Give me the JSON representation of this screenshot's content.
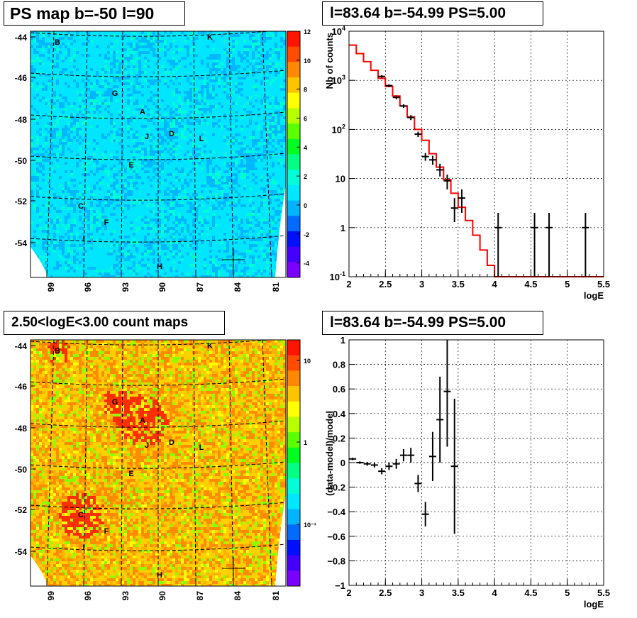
{
  "palette": [
    "#7a00ff",
    "#4400ff",
    "#0010ff",
    "#006cff",
    "#00b4ff",
    "#00e8ff",
    "#00ffd8",
    "#00ff84",
    "#00ff20",
    "#5cff00",
    "#b8ff00",
    "#ffff00",
    "#ffc400",
    "#ff8800",
    "#ff4c00",
    "#ff1400"
  ],
  "chart_data": [
    {
      "type": "heatmap",
      "title": "PS map b=-50 l=90",
      "yticks": [
        "-44",
        "-46",
        "-48",
        "-50",
        "-52",
        "-54"
      ],
      "xticks": [
        "99",
        "96",
        "93",
        "90",
        "87",
        "84",
        "81"
      ],
      "colorbar": {
        "ticks": [
          "12",
          "10",
          "8",
          "6",
          "4",
          "2",
          "0",
          "-2",
          "-4"
        ],
        "min": -5,
        "max": 12
      },
      "value_range": [
        0,
        2
      ],
      "dominant_color": "cyan",
      "sources": [
        "B",
        "K",
        "G",
        "A",
        "J",
        "D",
        "L",
        "E",
        "C",
        "F",
        "I",
        "H"
      ],
      "marker": "cross at l=83.64 b=-54.99"
    },
    {
      "type": "line",
      "title": "l=83.64 b=-54.99 PS=5.00",
      "xlabel": "logE",
      "ylabel": "Nb of counts",
      "log_y": true,
      "xlim": [
        2,
        5.5
      ],
      "ylim": [
        0.1,
        10000
      ],
      "xticks": [
        "2",
        "2.5",
        "3",
        "3.5",
        "4",
        "4.5",
        "5",
        "5.5"
      ],
      "yticks": [
        {
          "base": "10",
          "exp": "4"
        },
        {
          "base": "10",
          "exp": "3"
        },
        {
          "base": "10",
          "exp": "2"
        },
        {
          "base": "10",
          "exp": ""
        },
        {
          "base": "1",
          "exp": ""
        },
        {
          "base": "10",
          "exp": "-1"
        }
      ],
      "grid": true,
      "series": [
        {
          "kind": "model-step",
          "edges": [
            2,
            2.1,
            2.2,
            2.3,
            2.4,
            2.5,
            2.6,
            2.7,
            2.8,
            2.9,
            3,
            3.1,
            3.2,
            3.3,
            3.4,
            3.5,
            3.6,
            3.7,
            3.8,
            3.9,
            4,
            4.1,
            4.2,
            4.3,
            4.4,
            4.5,
            4.6,
            4.7,
            4.8,
            4.9,
            5,
            5.1,
            5.2,
            5.3,
            5.4,
            5.5
          ],
          "values": [
            5200,
            3500,
            2400,
            1600,
            1100,
            750,
            480,
            300,
            180,
            100,
            60,
            32,
            17,
            9.5,
            5,
            2.6,
            1.4,
            0.7,
            0.35,
            0.17,
            0.1,
            0.1,
            0.1,
            0.1,
            0.1,
            0.1,
            0.1,
            0.1,
            0.1,
            0.1,
            0.1,
            0.1,
            0.1,
            0.1,
            0.1
          ]
        },
        {
          "kind": "data-points",
          "points": [
            {
              "x": 2.45,
              "y": 1200,
              "lo": 1130,
              "hi": 1270
            },
            {
              "x": 2.55,
              "y": 780,
              "lo": 730,
              "hi": 830
            },
            {
              "x": 2.65,
              "y": 450,
              "lo": 410,
              "hi": 490
            },
            {
              "x": 2.75,
              "y": 300,
              "lo": 275,
              "hi": 325
            },
            {
              "x": 2.85,
              "y": 175,
              "lo": 155,
              "hi": 195
            },
            {
              "x": 2.95,
              "y": 80,
              "lo": 70,
              "hi": 90
            },
            {
              "x": 3.05,
              "y": 28,
              "lo": 23,
              "hi": 33
            },
            {
              "x": 3.15,
              "y": 24,
              "lo": 19,
              "hi": 29
            },
            {
              "x": 3.25,
              "y": 15,
              "lo": 11,
              "hi": 20
            },
            {
              "x": 3.35,
              "y": 9,
              "lo": 6,
              "hi": 12
            },
            {
              "x": 3.45,
              "y": 2.5,
              "lo": 1.3,
              "hi": 4
            },
            {
              "x": 3.55,
              "y": 4,
              "lo": 2,
              "hi": 6
            },
            {
              "x": 4.05,
              "y": 1,
              "lo": 0.1,
              "hi": 2
            },
            {
              "x": 4.55,
              "y": 1,
              "lo": 0.1,
              "hi": 2
            },
            {
              "x": 4.75,
              "y": 1,
              "lo": 0.1,
              "hi": 2
            },
            {
              "x": 5.25,
              "y": 1,
              "lo": 0.1,
              "hi": 2
            }
          ]
        }
      ]
    },
    {
      "type": "heatmap",
      "title": "2.50<logE<3.00 count maps",
      "yticks": [
        "-44",
        "-46",
        "-48",
        "-50",
        "-52",
        "-54"
      ],
      "xticks": [
        "99",
        "96",
        "93",
        "90",
        "87",
        "84",
        "81"
      ],
      "colorbar": {
        "ticks": [
          "10",
          "1",
          "10⁻¹"
        ],
        "log": true
      },
      "dominant_color": "yellow-orange",
      "sources": [
        "B",
        "K",
        "G",
        "A",
        "J",
        "D",
        "L",
        "E",
        "C",
        "F",
        "I",
        "H"
      ],
      "marker": "cross at l=83.64 b=-54.99"
    },
    {
      "type": "scatter",
      "title": "l=83.64 b=-54.99 PS=5.00",
      "xlabel": "logE",
      "ylabel": "(data-model)/model",
      "xlim": [
        2,
        5.5
      ],
      "ylim": [
        -1,
        1
      ],
      "xticks": [
        "2",
        "2.5",
        "3",
        "3.5",
        "4",
        "4.5",
        "5",
        "5.5"
      ],
      "yticks": [
        "1",
        "0.8",
        "0.6",
        "0.4",
        "0.2",
        "0",
        "−0.2",
        "−0.4",
        "−0.6",
        "−0.8",
        "−1"
      ],
      "grid": true,
      "points": [
        {
          "x": 2.05,
          "y": 0.03,
          "err": 0.01
        },
        {
          "x": 2.15,
          "y": 0.0,
          "err": 0.01
        },
        {
          "x": 2.25,
          "y": -0.01,
          "err": 0.015
        },
        {
          "x": 2.35,
          "y": -0.02,
          "err": 0.02
        },
        {
          "x": 2.45,
          "y": -0.07,
          "err": 0.025
        },
        {
          "x": 2.55,
          "y": -0.03,
          "err": 0.03
        },
        {
          "x": 2.65,
          "y": -0.01,
          "err": 0.04
        },
        {
          "x": 2.75,
          "y": 0.06,
          "err": 0.05
        },
        {
          "x": 2.85,
          "y": 0.06,
          "err": 0.06
        },
        {
          "x": 2.95,
          "y": -0.17,
          "err": 0.07
        },
        {
          "x": 3.05,
          "y": -0.42,
          "err": 0.1
        },
        {
          "x": 3.15,
          "y": 0.05,
          "err": 0.2
        },
        {
          "x": 3.25,
          "y": 0.35,
          "err": 0.35
        },
        {
          "x": 3.35,
          "y": 0.58,
          "err": 0.45
        },
        {
          "x": 3.45,
          "y": -0.03,
          "err": 0.55
        }
      ]
    }
  ]
}
